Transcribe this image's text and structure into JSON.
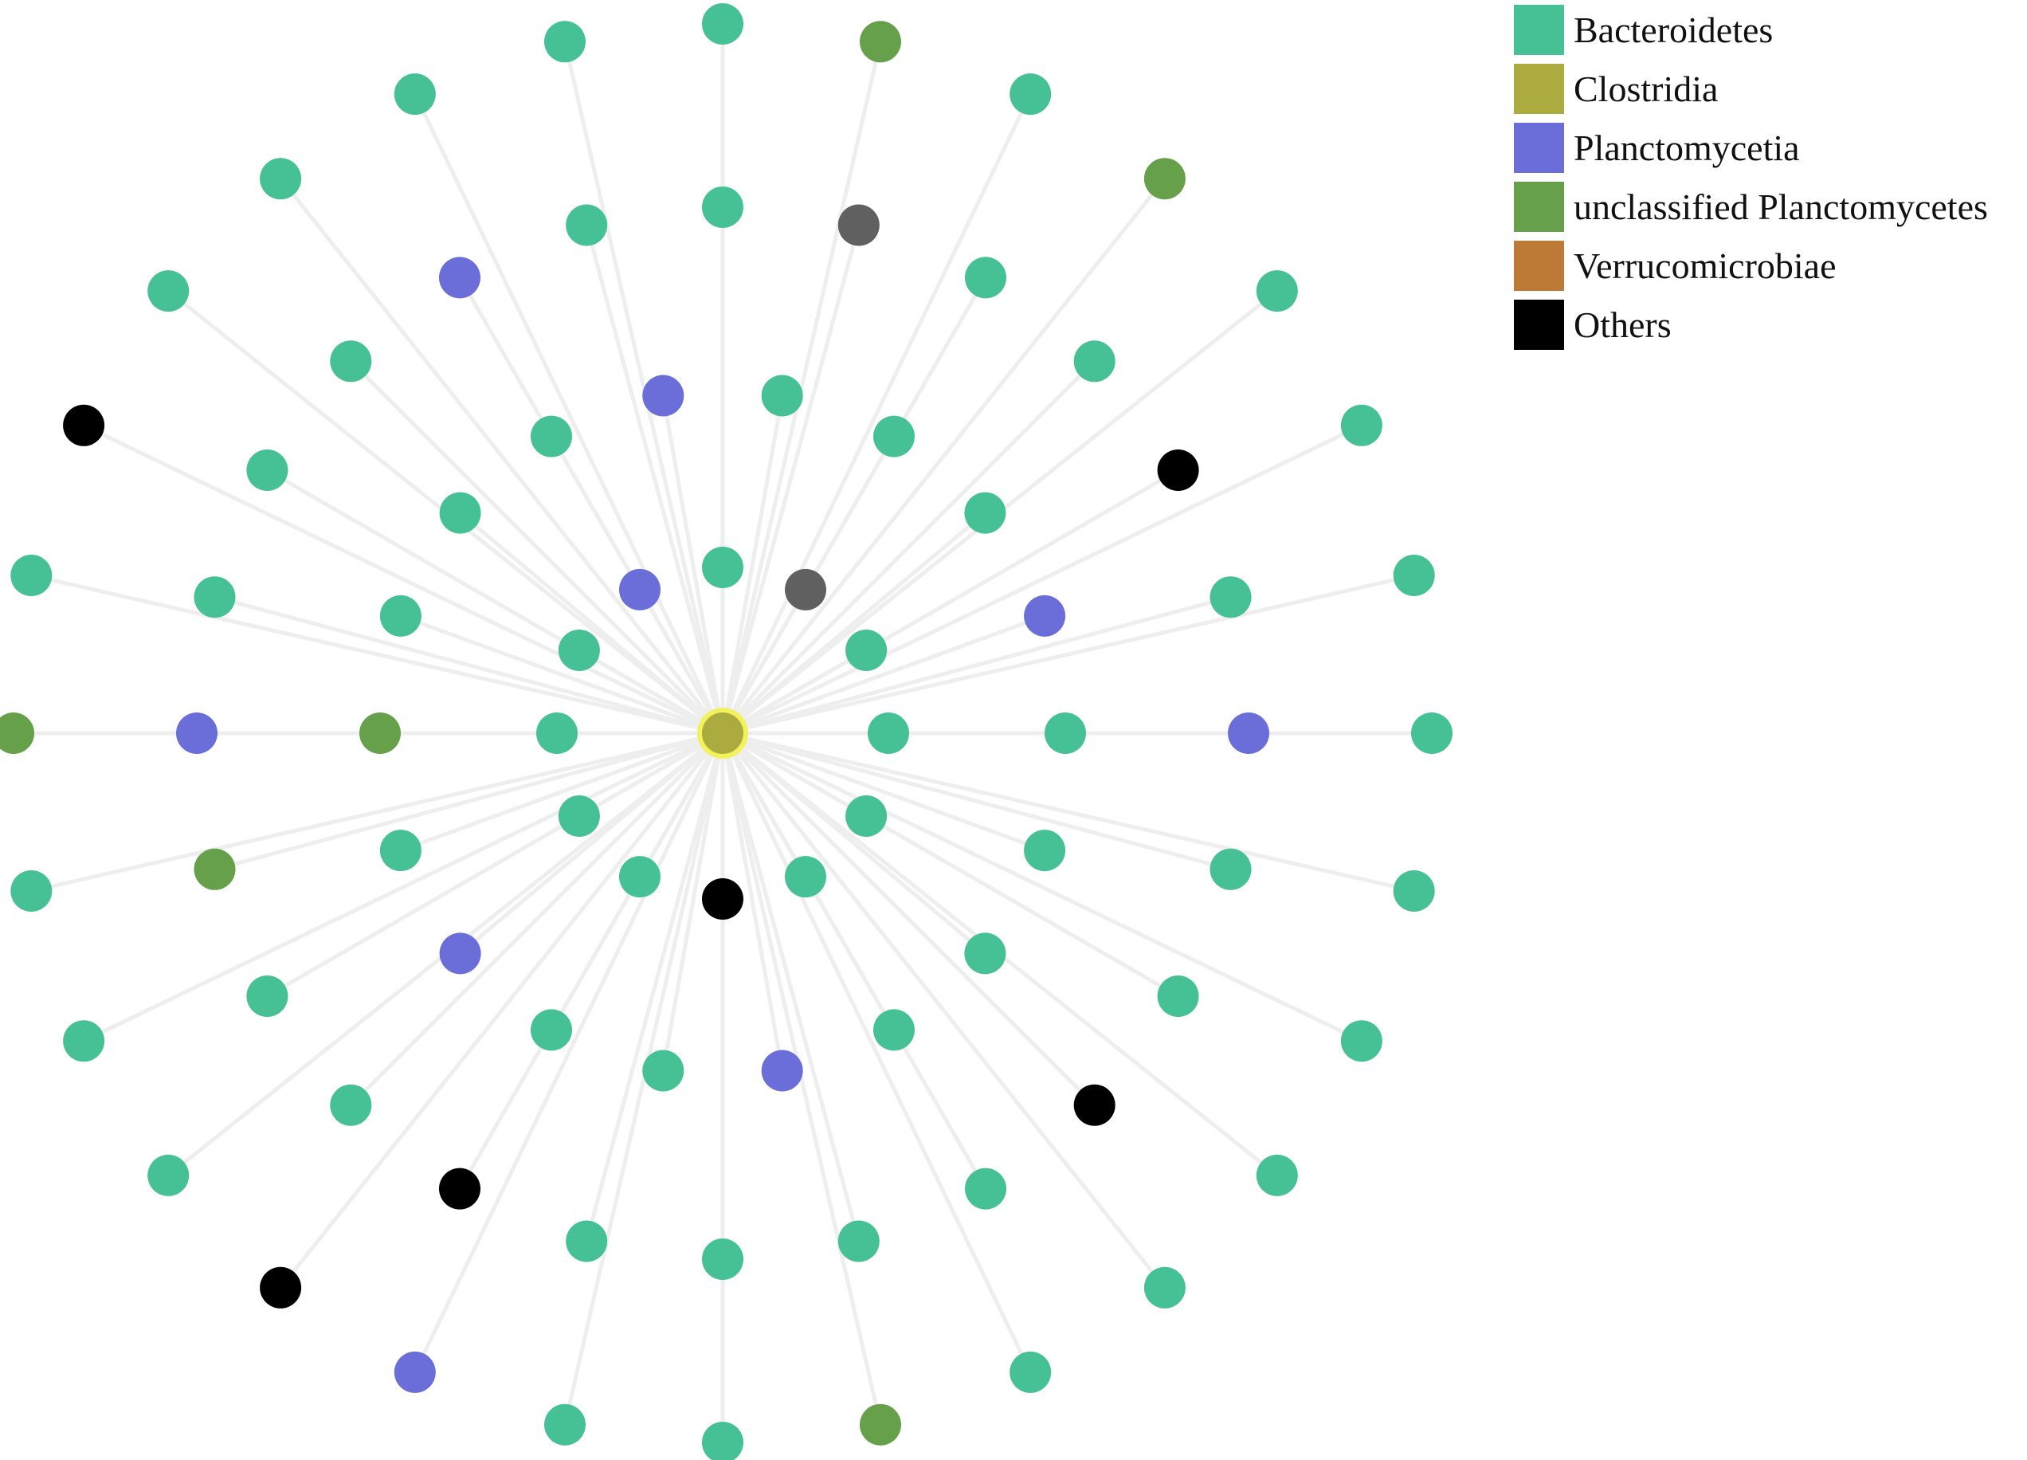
{
  "legend": [
    {
      "label": "Bacteroidetes",
      "color": "#45C195"
    },
    {
      "label": "Clostridia",
      "color": "#ACAB3F"
    },
    {
      "label": "Planctomycetia",
      "color": "#6B6ED9"
    },
    {
      "label": "unclassified Planctomycetes",
      "color": "#67A04B"
    },
    {
      "label": "Verrucomicrobiae",
      "color": "#BC7A36"
    },
    {
      "label": "Others",
      "color": "#000000"
    }
  ],
  "network": {
    "hub": {
      "class": "Clostridia",
      "highlight": "#F2F25C"
    },
    "edge_color": "#EEEEEE",
    "extra_colors": {
      "gray": "#606060"
    },
    "rings": [
      {
        "name": "inner",
        "nodes": [
          "Bacteroidetes",
          "Bacteroidetes",
          "Bacteroidetes",
          "Others",
          "Bacteroidetes",
          "Bacteroidetes",
          "Bacteroidetes",
          "Bacteroidetes",
          "Planctomycetia",
          "Bacteroidetes",
          "gray",
          "Bacteroidetes"
        ]
      },
      {
        "name": "middle",
        "nodes": [
          "Bacteroidetes",
          "Bacteroidetes",
          "Bacteroidetes",
          "Bacteroidetes",
          "Planctomycetia",
          "Bacteroidetes",
          "Bacteroidetes",
          "Planctomycetia",
          "Bacteroidetes",
          "unclassified Planctomycetes",
          "Bacteroidetes",
          "Bacteroidetes",
          "Bacteroidetes",
          "Planctomycetia",
          "Bacteroidetes",
          "Bacteroidetes",
          "Bacteroidetes",
          "Planctomycetia"
        ]
      },
      {
        "name": "outer",
        "nodes": [
          "Planctomycetia",
          "Bacteroidetes",
          "Bacteroidetes",
          "Others",
          "Bacteroidetes",
          "Bacteroidetes",
          "Bacteroidetes",
          "Bacteroidetes",
          "Others",
          "Bacteroidetes",
          "Bacteroidetes",
          "unclassified Planctomycetes",
          "Planctomycetia",
          "Bacteroidetes",
          "Bacteroidetes",
          "Bacteroidetes",
          "Planctomycetia",
          "Bacteroidetes",
          "Bacteroidetes",
          "gray",
          "Bacteroidetes",
          "Bacteroidetes",
          "Others",
          "Bacteroidetes"
        ]
      },
      {
        "name": "outermost",
        "nodes": [
          "Bacteroidetes",
          "Bacteroidetes",
          "Bacteroidetes",
          "Bacteroidetes",
          "Bacteroidetes",
          "Bacteroidetes",
          "unclassified Planctomycetes",
          "Bacteroidetes",
          "Bacteroidetes",
          "Planctomycetia",
          "Others",
          "Bacteroidetes",
          "Bacteroidetes",
          "Bacteroidetes",
          "unclassified Planctomycetes",
          "Bacteroidetes",
          "Others",
          "Bacteroidetes",
          "Bacteroidetes",
          "Bacteroidetes",
          "Bacteroidetes",
          "Bacteroidetes",
          "unclassified Planctomycetes",
          "Bacteroidetes",
          "unclassified Planctomycetes",
          "Bacteroidetes",
          "Bacteroidetes",
          "Bacteroidetes"
        ]
      }
    ]
  }
}
